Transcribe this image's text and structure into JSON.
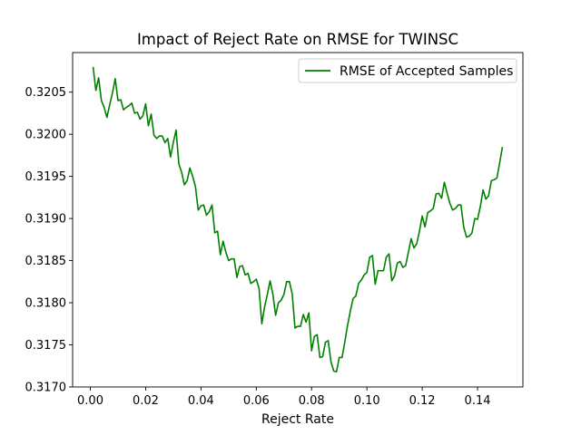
{
  "chart_data": {
    "type": "line",
    "title": "Impact of Reject Rate on RMSE for TWINSC",
    "xlabel": "Reject Rate",
    "ylabel": "",
    "xlim": [
      -0.0064,
      0.1564
    ],
    "ylim": [
      0.317,
      0.32097
    ],
    "xticks": [
      0.0,
      0.02,
      0.04,
      0.06,
      0.08,
      0.1,
      0.12,
      0.14
    ],
    "xtick_labels": [
      "0.00",
      "0.02",
      "0.04",
      "0.06",
      "0.08",
      "0.10",
      "0.12",
      "0.14"
    ],
    "yticks": [
      0.317,
      0.3175,
      0.318,
      0.3185,
      0.319,
      0.3195,
      0.32,
      0.3205
    ],
    "ytick_labels": [
      "0.3170",
      "0.3175",
      "0.3180",
      "0.3185",
      "0.3190",
      "0.3195",
      "0.3200",
      "0.3205"
    ],
    "grid": false,
    "legend_position": "top-right",
    "series": [
      {
        "name": "RMSE of Accepted Samples",
        "color": "#008000",
        "x": [
          0.001,
          0.002,
          0.003,
          0.004,
          0.005,
          0.006,
          0.007,
          0.008,
          0.009,
          0.01,
          0.011,
          0.012,
          0.013,
          0.014,
          0.015,
          0.016,
          0.017,
          0.018,
          0.019,
          0.02,
          0.021,
          0.022,
          0.023,
          0.024,
          0.025,
          0.026,
          0.027,
          0.028,
          0.029,
          0.03,
          0.031,
          0.032,
          0.033,
          0.034,
          0.035,
          0.036,
          0.037,
          0.038,
          0.039,
          0.04,
          0.041,
          0.042,
          0.043,
          0.044,
          0.045,
          0.046,
          0.047,
          0.048,
          0.049,
          0.05,
          0.051,
          0.052,
          0.053,
          0.054,
          0.055,
          0.056,
          0.057,
          0.058,
          0.059,
          0.06,
          0.061,
          0.062,
          0.063,
          0.064,
          0.065,
          0.066,
          0.067,
          0.068,
          0.069,
          0.07,
          0.071,
          0.072,
          0.073,
          0.074,
          0.075,
          0.076,
          0.077,
          0.078,
          0.079,
          0.08,
          0.081,
          0.082,
          0.083,
          0.084,
          0.085,
          0.086,
          0.087,
          0.088,
          0.089,
          0.09,
          0.091,
          0.092,
          0.093,
          0.094,
          0.095,
          0.096,
          0.097,
          0.098,
          0.099,
          0.1,
          0.101,
          0.102,
          0.103,
          0.104,
          0.105,
          0.106,
          0.107,
          0.108,
          0.109,
          0.11,
          0.111,
          0.112,
          0.113,
          0.114,
          0.115,
          0.116,
          0.117,
          0.118,
          0.119,
          0.12,
          0.121,
          0.122,
          0.123,
          0.124,
          0.125,
          0.126,
          0.127,
          0.128,
          0.129,
          0.13,
          0.131,
          0.132,
          0.133,
          0.134,
          0.135,
          0.136,
          0.137,
          0.138,
          0.139,
          0.14,
          0.141,
          0.142,
          0.143,
          0.144,
          0.145,
          0.146,
          0.147,
          0.148,
          0.149
        ],
        "y": [
          0.3208,
          0.32052,
          0.32067,
          0.3204,
          0.32032,
          0.3202,
          0.32035,
          0.32049,
          0.32066,
          0.3204,
          0.32041,
          0.32029,
          0.32032,
          0.32034,
          0.32037,
          0.32025,
          0.32026,
          0.32018,
          0.32022,
          0.32036,
          0.3201,
          0.32024,
          0.31999,
          0.31995,
          0.31998,
          0.31998,
          0.3199,
          0.31995,
          0.31973,
          0.3199,
          0.32005,
          0.31965,
          0.31955,
          0.3194,
          0.31945,
          0.3196,
          0.3195,
          0.31938,
          0.3191,
          0.31915,
          0.31916,
          0.31904,
          0.31908,
          0.31916,
          0.31883,
          0.31885,
          0.31857,
          0.31873,
          0.3186,
          0.3185,
          0.31852,
          0.31852,
          0.3183,
          0.31843,
          0.31844,
          0.31833,
          0.31835,
          0.31823,
          0.31825,
          0.31828,
          0.31817,
          0.31775,
          0.31795,
          0.3181,
          0.31826,
          0.3181,
          0.31785,
          0.318,
          0.31803,
          0.3181,
          0.31825,
          0.31825,
          0.3181,
          0.3177,
          0.31772,
          0.31772,
          0.31786,
          0.31777,
          0.31788,
          0.31743,
          0.3176,
          0.31762,
          0.31735,
          0.31736,
          0.31753,
          0.31755,
          0.3173,
          0.31719,
          0.31718,
          0.31735,
          0.31735,
          0.31753,
          0.31773,
          0.3179,
          0.31805,
          0.31808,
          0.31823,
          0.31827,
          0.31833,
          0.31836,
          0.31854,
          0.31856,
          0.31822,
          0.31838,
          0.31838,
          0.31838,
          0.31854,
          0.31858,
          0.31826,
          0.31832,
          0.31847,
          0.31849,
          0.31842,
          0.31844,
          0.3186,
          0.31876,
          0.31865,
          0.3187,
          0.31885,
          0.31903,
          0.3189,
          0.31907,
          0.31909,
          0.31912,
          0.31929,
          0.3193,
          0.31924,
          0.31943,
          0.3193,
          0.31918,
          0.3191,
          0.31912,
          0.31916,
          0.31916,
          0.3189,
          0.31878,
          0.31879,
          0.31883,
          0.319,
          0.31899,
          0.31914,
          0.31934,
          0.31923,
          0.31927,
          0.31945,
          0.31946,
          0.31948,
          0.31966,
          0.31985
        ]
      }
    ]
  }
}
